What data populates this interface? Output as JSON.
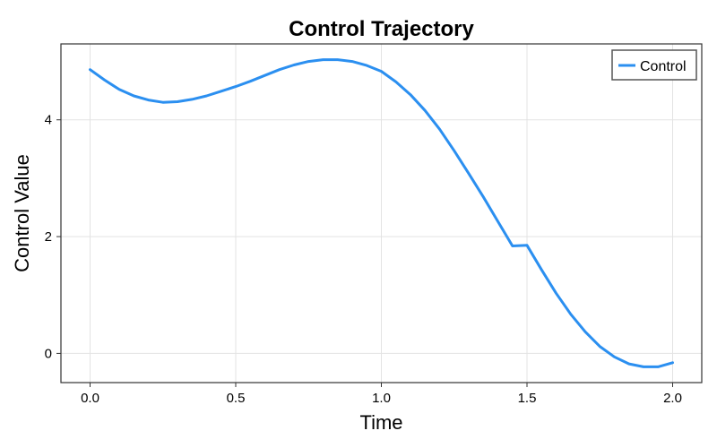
{
  "chart_data": {
    "type": "line",
    "title": "Control Trajectory",
    "xlabel": "Time",
    "ylabel": "Control Value",
    "xlim": [
      -0.1,
      2.1
    ],
    "ylim": [
      -0.5,
      5.3
    ],
    "xticks": [
      0.0,
      0.5,
      1.0,
      1.5,
      2.0
    ],
    "xtick_labels": [
      "0.0",
      "0.5",
      "1.0",
      "1.5",
      "2.0"
    ],
    "yticks": [
      0,
      2,
      4
    ],
    "ytick_labels": [
      "0",
      "2",
      "4"
    ],
    "grid": true,
    "legend_position": "top-right",
    "series": [
      {
        "name": "Control",
        "color": "#2b8ff0",
        "x": [
          0.0,
          0.05,
          0.1,
          0.15,
          0.2,
          0.25,
          0.3,
          0.35,
          0.4,
          0.45,
          0.5,
          0.55,
          0.6,
          0.65,
          0.7,
          0.75,
          0.8,
          0.85,
          0.9,
          0.95,
          1.0,
          1.05,
          1.1,
          1.15,
          1.2,
          1.25,
          1.3,
          1.35,
          1.4,
          1.45,
          1.5,
          1.55,
          1.6,
          1.65,
          1.7,
          1.75,
          1.8,
          1.85,
          1.9,
          1.95,
          2.0
        ],
        "y": [
          4.86,
          4.68,
          4.52,
          4.41,
          4.34,
          4.3,
          4.31,
          4.35,
          4.41,
          4.49,
          4.57,
          4.66,
          4.76,
          4.86,
          4.94,
          5.0,
          5.03,
          5.03,
          5.0,
          4.93,
          4.83,
          4.65,
          4.43,
          4.16,
          3.84,
          3.47,
          3.08,
          2.68,
          2.26,
          1.84,
          1.85,
          1.43,
          1.03,
          0.67,
          0.37,
          0.12,
          -0.06,
          -0.18,
          -0.23,
          -0.23,
          -0.16
        ]
      }
    ]
  }
}
